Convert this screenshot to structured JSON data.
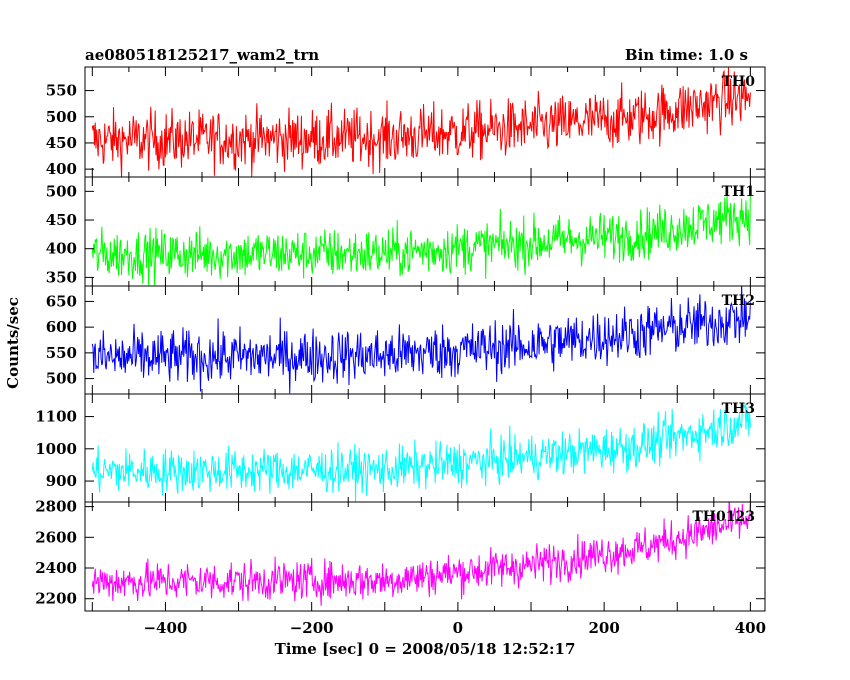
{
  "header": {
    "left": "ae080518125217_wam2_trn",
    "right": "Bin time: 1.0 s"
  },
  "chart_data": {
    "type": "line",
    "xlabel": "Time [sec] 0 = 2008/05/18 12:52:17",
    "ylabel": "Counts/sec",
    "xlim": [
      -510,
      420
    ],
    "xticks": [
      -400,
      -200,
      0,
      200,
      400
    ],
    "x_start": -500,
    "x_end": 400,
    "x_step": 1,
    "panels": [
      {
        "name": "TH0",
        "color": "#ff0000",
        "ylim": [
          385,
          595
        ],
        "yticks": [
          400,
          450,
          500,
          550
        ],
        "trend": [
          [
            -500,
            455
          ],
          [
            -100,
            460
          ],
          [
            100,
            480
          ],
          [
            250,
            500
          ],
          [
            400,
            540
          ]
        ],
        "noise": 28
      },
      {
        "name": "TH1",
        "color": "#00ff00",
        "ylim": [
          335,
          525
        ],
        "yticks": [
          350,
          400,
          450,
          500
        ],
        "trend": [
          [
            -500,
            390
          ],
          [
            -100,
            392
          ],
          [
            100,
            410
          ],
          [
            250,
            425
          ],
          [
            400,
            460
          ]
        ],
        "noise": 22
      },
      {
        "name": "TH2",
        "color": "#0000ff",
        "ylim": [
          470,
          680
        ],
        "yticks": [
          500,
          550,
          600,
          650
        ],
        "trend": [
          [
            -500,
            540
          ],
          [
            -100,
            545
          ],
          [
            100,
            565
          ],
          [
            250,
            590
          ],
          [
            400,
            620
          ]
        ],
        "noise": 27
      },
      {
        "name": "TH3",
        "color": "#00ffff",
        "ylim": [
          835,
          1170
        ],
        "yticks": [
          900,
          1000,
          1100
        ],
        "trend": [
          [
            -500,
            930
          ],
          [
            -100,
            935
          ],
          [
            100,
            975
          ],
          [
            250,
            1010
          ],
          [
            400,
            1090
          ]
        ],
        "noise": 35
      },
      {
        "name": "TH0123",
        "color": "#ff00ff",
        "ylim": [
          2120,
          2830
        ],
        "yticks": [
          2200,
          2400,
          2600,
          2800
        ],
        "trend": [
          [
            -500,
            2310
          ],
          [
            -100,
            2320
          ],
          [
            100,
            2420
          ],
          [
            250,
            2530
          ],
          [
            400,
            2720
          ]
        ],
        "noise": 65
      }
    ]
  }
}
